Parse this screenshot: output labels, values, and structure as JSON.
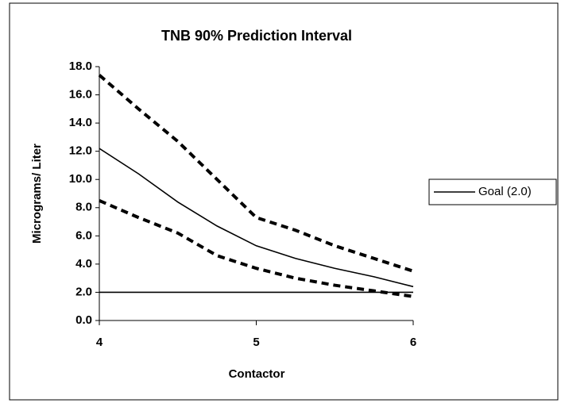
{
  "chart_data": {
    "type": "line",
    "title": "TNB 90% Prediction Interval",
    "x_label": "Contactor",
    "y_label": "Micrograms/ Liter",
    "x": [
      4,
      4.25,
      4.5,
      4.75,
      5,
      5.25,
      5.5,
      5.75,
      6
    ],
    "series": [
      {
        "color": "#000000",
        "style": "dashed",
        "values": [
          17.4,
          15.0,
          12.7,
          10.0,
          7.3,
          6.4,
          5.3,
          4.4,
          3.5
        ]
      },
      {
        "color": "#000000",
        "style": "solid",
        "values": [
          12.2,
          10.4,
          8.4,
          6.7,
          5.3,
          4.4,
          3.7,
          3.1,
          2.4
        ]
      },
      {
        "color": "#000000",
        "style": "dashed",
        "values": [
          8.5,
          7.3,
          6.2,
          4.6,
          3.7,
          3.0,
          2.5,
          2.1,
          1.7
        ]
      },
      {
        "name": "Goal (2.0)",
        "color": "#000000",
        "style": "solid",
        "values": [
          2,
          2,
          2,
          2,
          2,
          2,
          2,
          2,
          2
        ]
      }
    ],
    "xlim": [
      4,
      6
    ],
    "xticks": [
      4,
      5,
      6
    ],
    "ylim": [
      0,
      18
    ],
    "yticks": [
      {
        "value": 0,
        "label": "0.0"
      },
      {
        "value": 2,
        "label": "2.0"
      },
      {
        "value": 4,
        "label": "4.0"
      },
      {
        "value": 6,
        "label": "6.0"
      },
      {
        "value": 8,
        "label": "8.0"
      },
      {
        "value": 10,
        "label": "10.0"
      },
      {
        "value": 12,
        "label": "12.0"
      },
      {
        "value": 14,
        "label": "14.0"
      },
      {
        "value": 16,
        "label": "16.0"
      },
      {
        "value": 18,
        "label": "18.0"
      }
    ],
    "grid": false,
    "legend": "right"
  }
}
